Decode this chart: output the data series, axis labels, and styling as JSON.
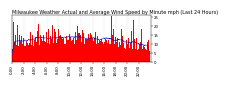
{
  "title": "Milwaukee Weather Actual and Average Wind Speed by Minute mph (Last 24 Hours)",
  "n_points": 1440,
  "ylim": [
    0,
    26
  ],
  "yticks": [
    0,
    5,
    10,
    15,
    20,
    25
  ],
  "background_color": "#ffffff",
  "bar_color": "#ff0000",
  "line_color": "#0000cc",
  "grid_color": "#bbbbbb",
  "title_fontsize": 3.5,
  "tick_fontsize": 2.8,
  "seed": 99
}
